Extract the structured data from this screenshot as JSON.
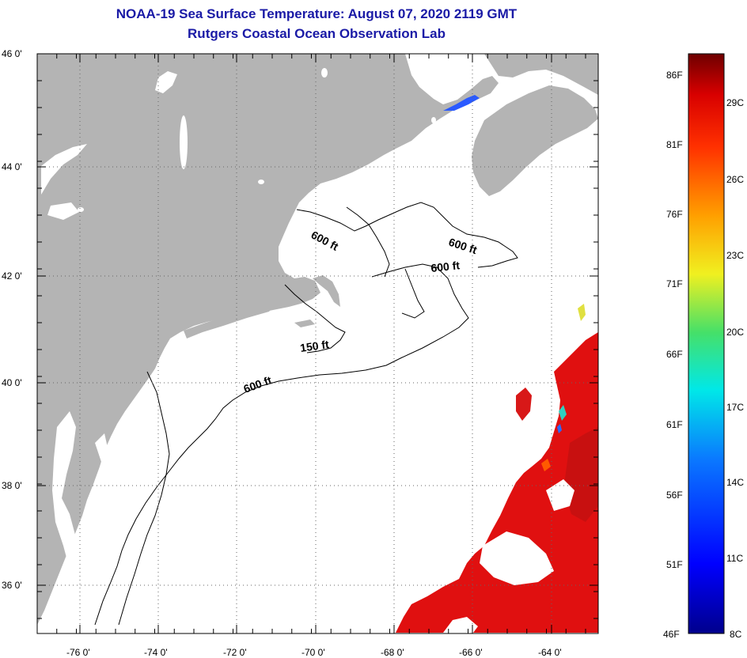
{
  "header": {
    "title": "NOAA-19 Sea Surface Temperature:  August 07, 2020 2119 GMT",
    "subtitle": "Rutgers Coastal Ocean Observation Lab"
  },
  "axes": {
    "lat_labels": [
      "46 0'",
      "44 0'",
      "42 0'",
      "40 0'",
      "38 0'",
      "36 0'"
    ],
    "lon_labels": [
      "-76 0'",
      "-74 0'",
      "-72 0'",
      "-70 0'",
      "-68 0'",
      "-66 0'",
      "-64 0'"
    ]
  },
  "contours": {
    "label_600_gulf": "600 ft",
    "label_600_east": "600 ft",
    "label_600_georges": "600 ft",
    "label_150": "150 ft",
    "label_600_shelf": "600 ft"
  },
  "colorbar": {
    "fahrenheit": [
      "86F",
      "81F",
      "76F",
      "71F",
      "66F",
      "61F",
      "56F",
      "51F",
      "46F"
    ],
    "celsius": [
      "29C",
      "26C",
      "23C",
      "20C",
      "17C",
      "14C",
      "11C",
      "8C"
    ]
  },
  "colors": {
    "land": "#b4b4b4",
    "sst_warm": "#e01010",
    "title": "#1a1aa6"
  }
}
